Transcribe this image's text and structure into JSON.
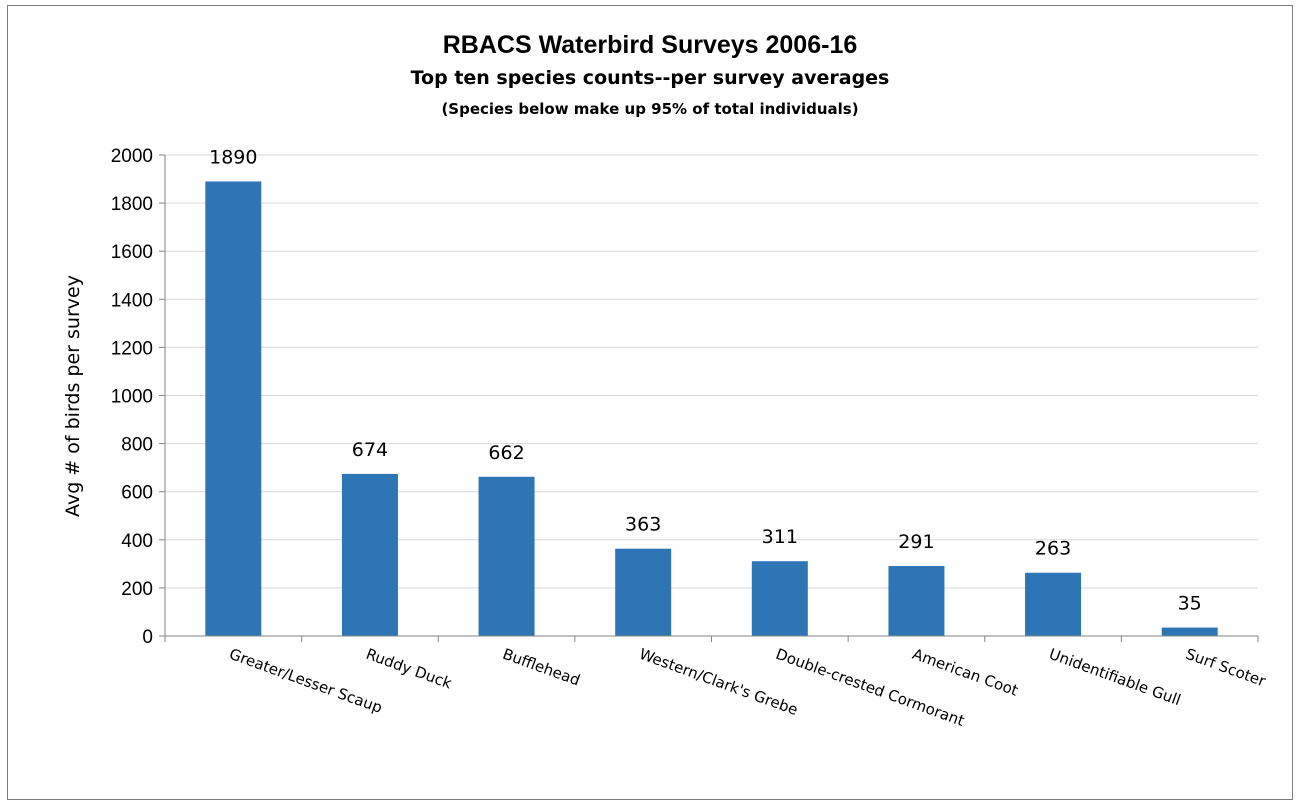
{
  "chart_data": {
    "type": "bar",
    "title": "RBACS Waterbird Surveys 2006-16",
    "subtitle": "Top ten species counts--per survey averages",
    "note": "(Species below make up 95% of total individuals)",
    "ylabel": "Avg # of birds per survey",
    "xlabel": "",
    "ylim": [
      0,
      2000
    ],
    "ytick_step": 200,
    "yticks": [
      "0",
      "200",
      "400",
      "600",
      "800",
      "1000",
      "1200",
      "1400",
      "1600",
      "1800",
      "2000"
    ],
    "grid": true,
    "legend": "none",
    "bar_color": "#2e75b6",
    "categories": [
      "Greater/Lesser Scaup",
      "Ruddy Duck",
      "Bufflehead",
      "Western/Clark's Grebe",
      "Double-crested Cormorant",
      "American Coot",
      "Unidentifiable Gull",
      "Surf Scoter"
    ],
    "values": [
      1890,
      674,
      662,
      363,
      311,
      291,
      263,
      35
    ],
    "data_labels": [
      "1890",
      "674",
      "662",
      "363",
      "311",
      "291",
      "263",
      "35"
    ]
  }
}
